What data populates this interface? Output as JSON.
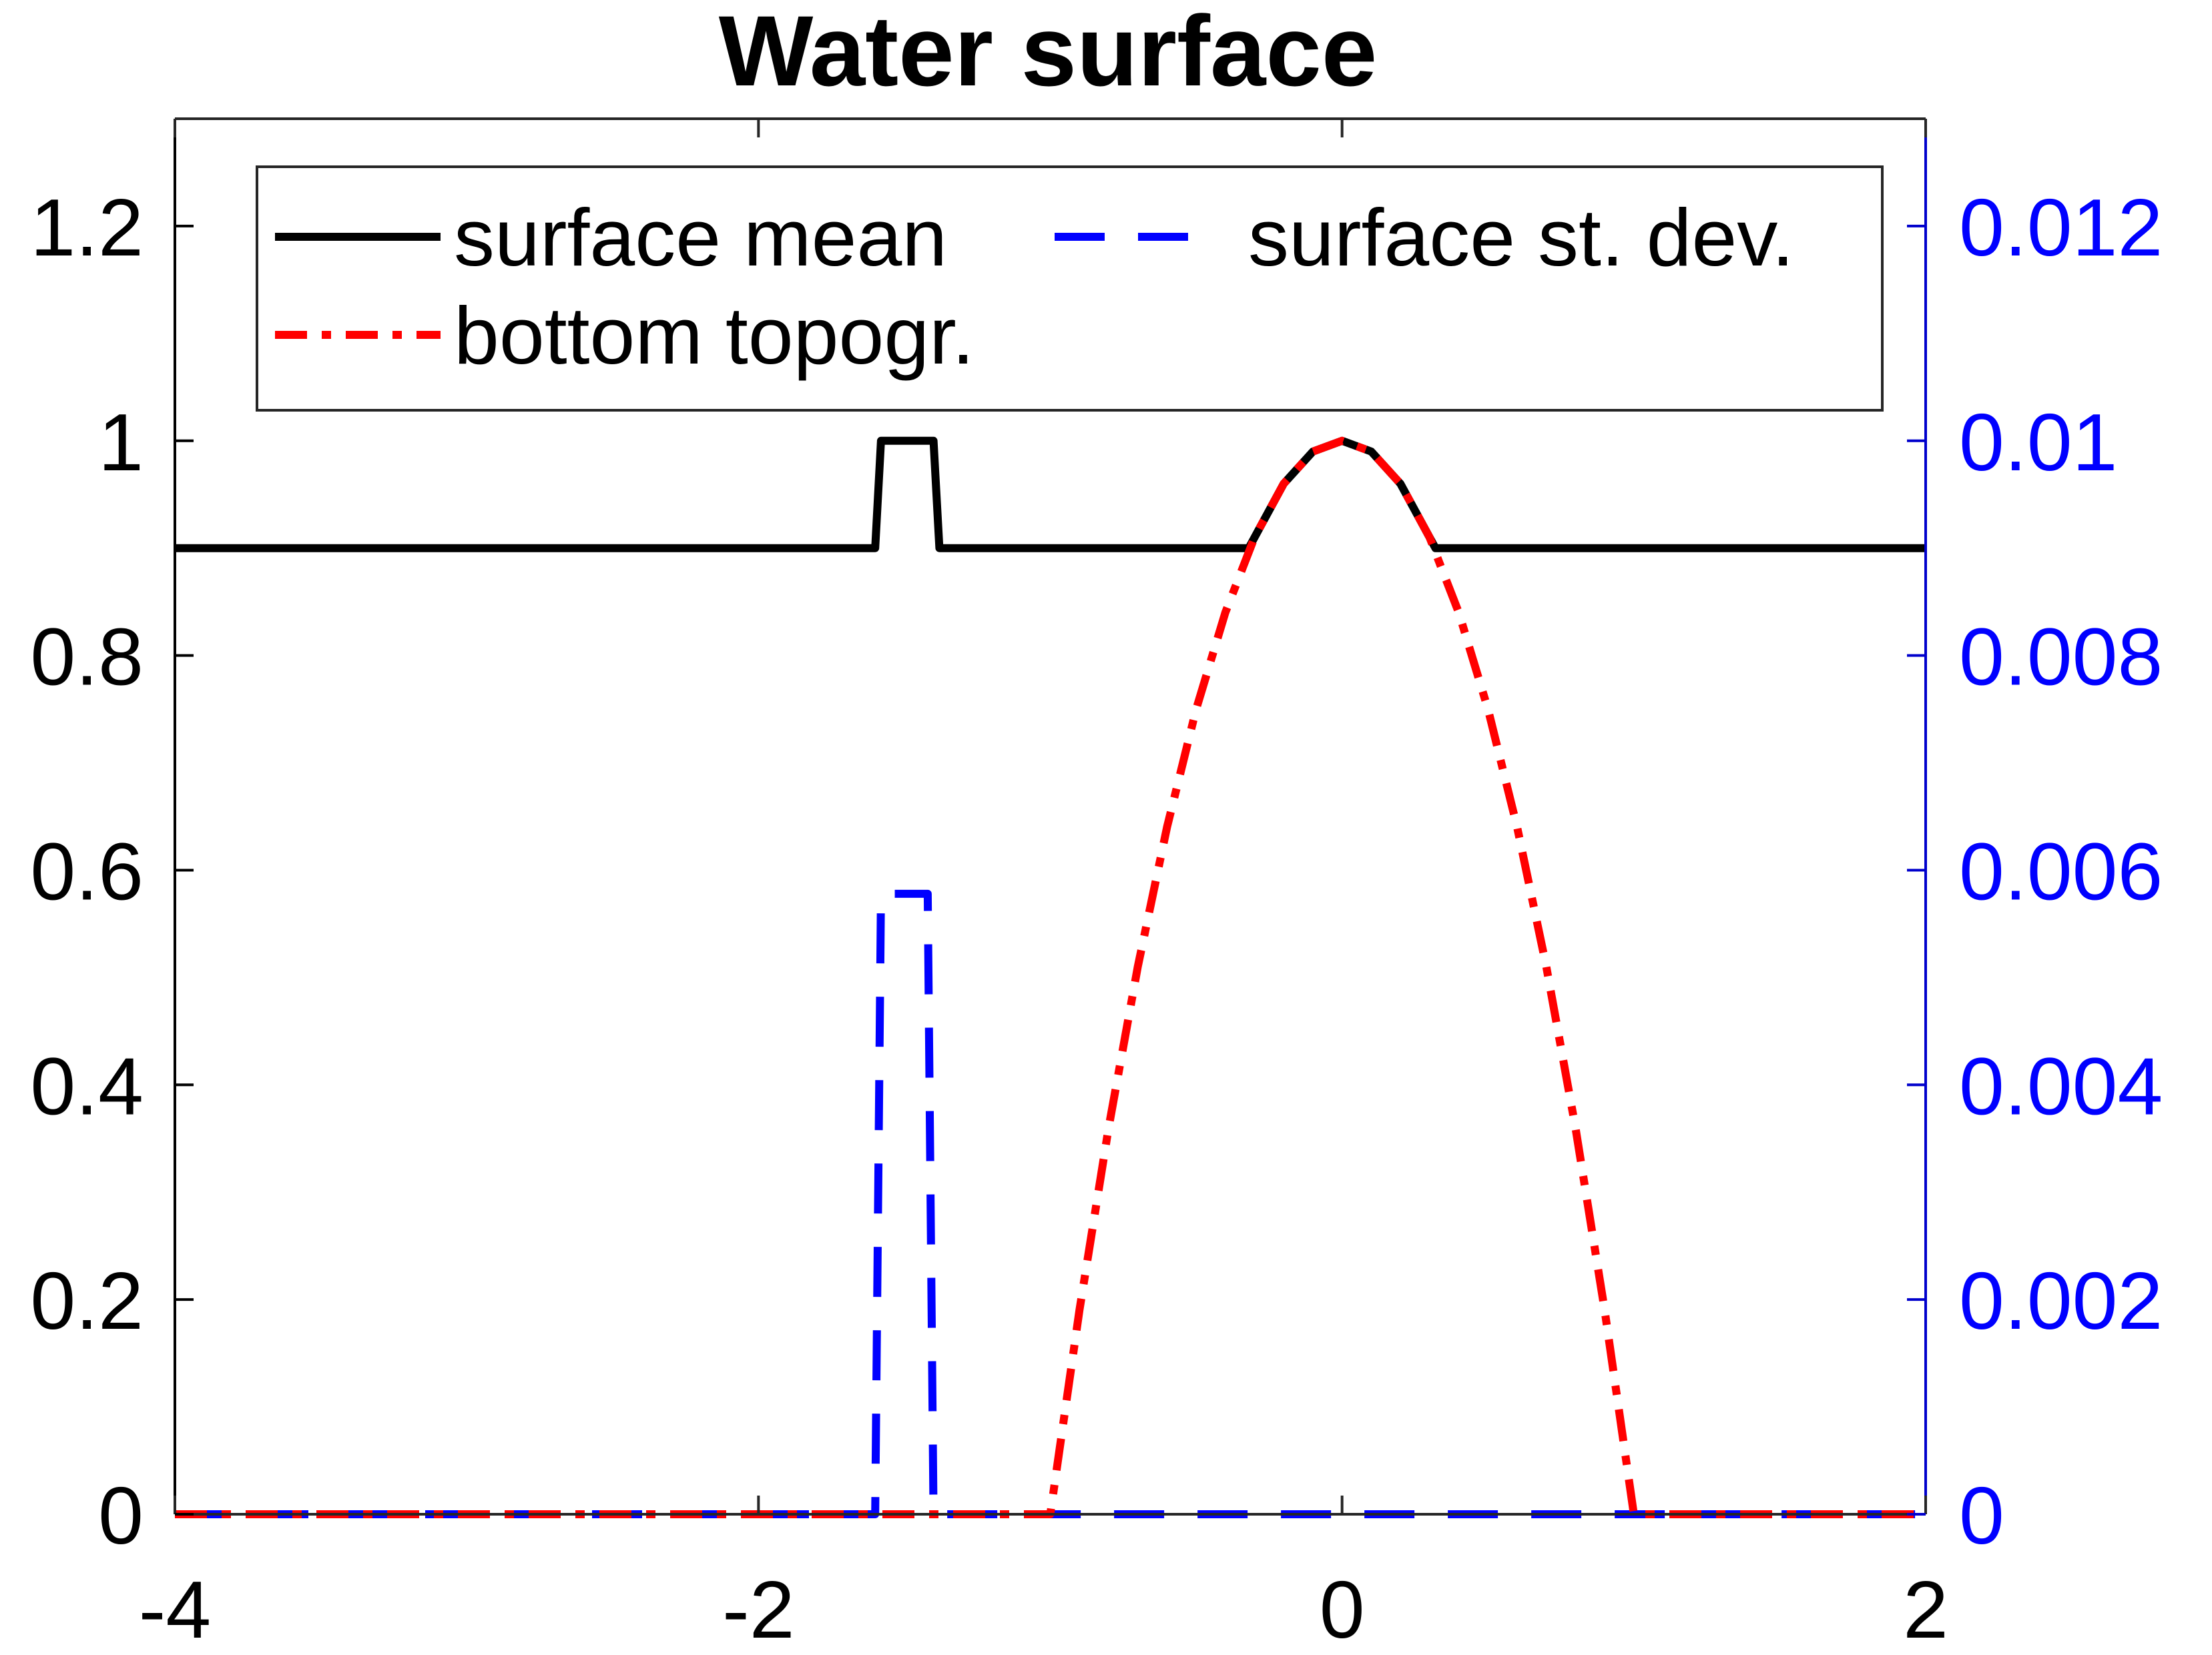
{
  "chart_data": {
    "type": "line",
    "title": "Water surface",
    "xlabel": "",
    "ylabel_left": "",
    "ylabel_right": "",
    "xlim": [
      -4,
      2
    ],
    "ylim_left": [
      0,
      1.3
    ],
    "ylim_right": [
      0,
      0.013
    ],
    "x_ticks": [
      -4,
      -2,
      0,
      2
    ],
    "x_tick_labels": [
      "-4",
      "-2",
      "0",
      "2"
    ],
    "y_left_ticks": [
      0,
      0.2,
      0.4,
      0.6,
      0.8,
      1.0,
      1.2
    ],
    "y_left_tick_labels": [
      "0",
      "0.2",
      "0.4",
      "0.6",
      "0.8",
      "1",
      "1.2"
    ],
    "y_right_ticks": [
      0,
      0.002,
      0.004,
      0.006,
      0.008,
      0.01,
      0.012
    ],
    "y_right_tick_labels": [
      "0",
      "0.002",
      "0.004",
      "0.006",
      "0.008",
      "0.01",
      "0.012"
    ],
    "grid": false,
    "legend_position": "top",
    "series": [
      {
        "name": "surface mean",
        "axis": "left",
        "color": "#000000",
        "style": "solid",
        "x": [
          -4,
          -1.6,
          -1.58,
          -1.4,
          -1.38,
          -0.32,
          -0.2,
          -0.1,
          0,
          0.1,
          0.2,
          0.32,
          2
        ],
        "y": [
          0.9,
          0.9,
          1.0,
          1.0,
          0.9,
          0.9,
          0.96,
          0.99,
          1.0,
          0.99,
          0.96,
          0.9,
          0.9
        ]
      },
      {
        "name": "surface st. dev.",
        "axis": "right",
        "color": "#0000ff",
        "style": "dashed",
        "x": [
          -4,
          -1.6,
          -1.58,
          -1.42,
          -1.4,
          2
        ],
        "y": [
          0,
          0,
          0.00578,
          0.00578,
          0,
          0
        ]
      },
      {
        "name": "bottom topogr.",
        "axis": "left",
        "color": "#ff0000",
        "style": "dashdot",
        "x": [
          -4,
          -1,
          -0.9,
          -0.8,
          -0.7,
          -0.6,
          -0.5,
          -0.4,
          -0.3,
          -0.2,
          -0.1,
          0,
          0.1,
          0.2,
          0.3,
          0.4,
          0.5,
          0.6,
          0.7,
          0.8,
          0.9,
          1,
          2
        ],
        "y": [
          0,
          0,
          0.19,
          0.36,
          0.51,
          0.64,
          0.75,
          0.84,
          0.91,
          0.96,
          0.99,
          1.0,
          0.99,
          0.96,
          0.91,
          0.84,
          0.75,
          0.64,
          0.51,
          0.36,
          0.19,
          0,
          0
        ]
      }
    ]
  },
  "colors": {
    "left_axis": "#000000",
    "right_axis": "#0000cc",
    "right_tick_labels": "#0000ff"
  }
}
